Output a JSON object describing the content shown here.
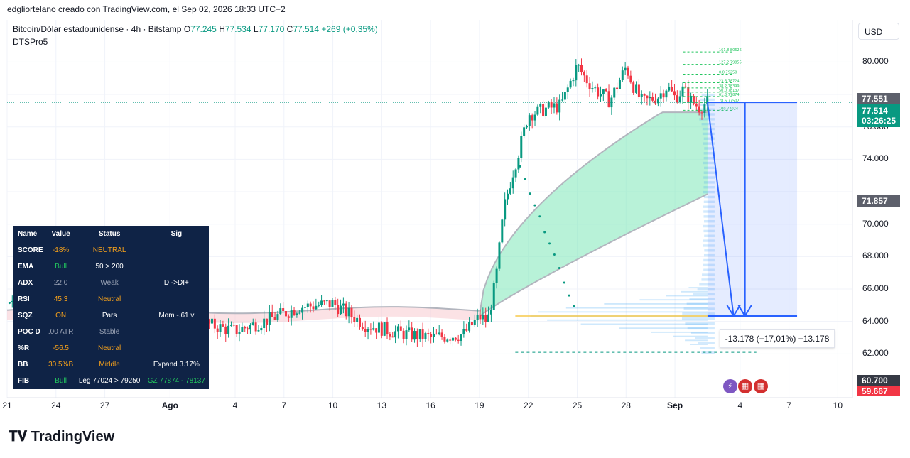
{
  "credit": "edgliortelano creado con TradingView.com, el Sep 02, 2026 18:33 UTC+2",
  "legend": {
    "symbol": "Bitcoin/Dólar estadounidense · 4h · Bitstamp",
    "o_label": "O",
    "o_value": "77.245",
    "h_label": "H",
    "h_value": "77.534",
    "l_label": "L",
    "l_value": "77.170",
    "c_label": "C",
    "c_value": "77.514",
    "change": "+269 (+0,35%)"
  },
  "indicator_name": "DTSPro5",
  "currency": "USD",
  "price_tags": {
    "high": "77.551",
    "last": "77.514",
    "countdown": "03:26:25",
    "mid": "71.857",
    "low1": "60.700",
    "low2": "59.667"
  },
  "measure_label": "-13.178 (−17,01%) −13.178",
  "fib_labels": [
    "161.8 80626",
    "127.2 79855",
    "0.0 79250",
    "23.6 78724",
    "38.2 78399",
    "50.0 78137",
    "61.8 77874",
    "78.6 77502",
    "100 77024"
  ],
  "panel": {
    "headers": [
      "Name",
      "Value",
      "Status",
      "Sig"
    ],
    "rows": [
      {
        "name": "SCORE",
        "value": "-18%",
        "status": "NEUTRAL",
        "sig": "",
        "vcolor": "#f7a21b",
        "scolor": "#f7a21b"
      },
      {
        "name": "EMA",
        "value": "Bull",
        "status": "50 > 200",
        "sig": "",
        "vcolor": "#22c55e",
        "scolor": "#ffffff"
      },
      {
        "name": "ADX",
        "value": "22.0",
        "status": "Weak",
        "sig": "DI->DI+",
        "vcolor": "#9aa3b5",
        "scolor": "#9aa3b5"
      },
      {
        "name": "RSI",
        "value": "45.3",
        "status": "Neutral",
        "sig": "",
        "vcolor": "#f7a21b",
        "scolor": "#f7a21b"
      },
      {
        "name": "SQZ",
        "value": "ON",
        "status": "Pars",
        "sig": "Mom -.61 v",
        "vcolor": "#f7a21b",
        "scolor": "#ffffff"
      },
      {
        "name": "POC D",
        "value": ".00 ATR",
        "status": "Stable",
        "sig": "",
        "vcolor": "#9aa3b5",
        "scolor": "#9aa3b5"
      },
      {
        "name": "%R",
        "value": "-56.5",
        "status": "Neutral",
        "sig": "",
        "vcolor": "#f7a21b",
        "scolor": "#f7a21b"
      },
      {
        "name": "BB",
        "value": "30.5%B",
        "status": "Middle",
        "sig": "Expand 3.17%",
        "vcolor": "#f7a21b",
        "scolor": "#f7a21b"
      },
      {
        "name": "FIB",
        "value": "Bull",
        "status": "Leg 77024 > 79250",
        "sig": "GZ 77874 - 78137",
        "vcolor": "#22c55e",
        "scolor": "#ffffff"
      }
    ]
  },
  "logo": "TradingView",
  "colors": {
    "up": "#089981",
    "down": "#f23645",
    "accent": "#2962ff"
  },
  "chart_data": {
    "type": "line",
    "title": "",
    "y_ticks": [
      62000,
      64000,
      66000,
      68000,
      70000,
      72000,
      74000,
      76000,
      78000,
      80000
    ],
    "y_tick_labels": [
      "62.000",
      "64.000",
      "66.000",
      "68.000",
      "70.000",
      "",
      "74.000",
      "76.000",
      "",
      "80.000"
    ],
    "ylim": [
      59300,
      82600
    ],
    "x_tick_labels": [
      "21",
      "24",
      "27",
      "Ago",
      "4",
      "7",
      "10",
      "13",
      "16",
      "19",
      "22",
      "25",
      "28",
      "Sep",
      "4",
      "7",
      "10"
    ],
    "x_ticks": [
      0,
      3,
      6,
      10,
      14,
      17,
      20,
      23,
      26,
      29,
      32,
      35,
      38,
      41,
      45,
      48,
      51
    ],
    "xlim": [
      0,
      51.9
    ],
    "series": [
      {
        "x": [
          0,
          2,
          4,
          6,
          8,
          10,
          12,
          14,
          16,
          18,
          20,
          22,
          24,
          26,
          28,
          29,
          29.5,
          30,
          30.5,
          31,
          31.5,
          32,
          32.5,
          33,
          34,
          35,
          35.5,
          36,
          37,
          38,
          38.5,
          39,
          40,
          40.5,
          41,
          41.5,
          42,
          42.5,
          43
        ],
        "values": [
          65100,
          66600,
          65100,
          63600,
          64400,
          64600,
          63900,
          63400,
          64100,
          64900,
          65100,
          63800,
          63300,
          63000,
          63200,
          64300,
          64000,
          66500,
          71000,
          73000,
          74800,
          76800,
          76900,
          77100,
          77300,
          79800,
          79000,
          78400,
          77600,
          79700,
          78400,
          77500,
          77900,
          78500,
          77800,
          78300,
          77600,
          77200,
          77514
        ]
      }
    ],
    "target_price": 64336,
    "fib_level_values": [
      80626,
      79855,
      79250,
      78724,
      78399,
      78137,
      77874,
      77502,
      77024
    ]
  }
}
